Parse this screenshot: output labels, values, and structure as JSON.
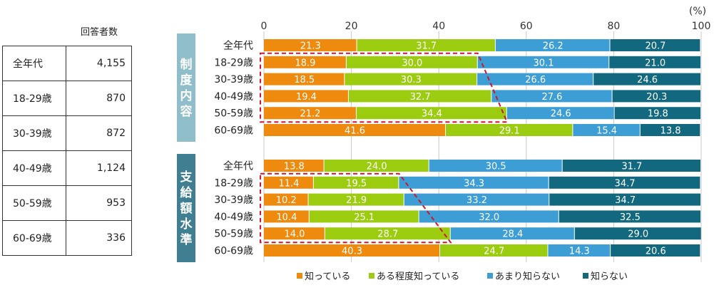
{
  "respondents": {
    "header": "回答者数",
    "rows": [
      {
        "label": "全年代",
        "value": "4,155"
      },
      {
        "label": "18-29歳",
        "value": "870"
      },
      {
        "label": "30-39歳",
        "value": "872"
      },
      {
        "label": "40-49歳",
        "value": "1,124"
      },
      {
        "label": "50-59歳",
        "value": "953"
      },
      {
        "label": "60-69歳",
        "value": "336"
      }
    ]
  },
  "chart_data": {
    "type": "bar",
    "orientation": "horizontal",
    "stacked": true,
    "percent_unit": "(%)",
    "xlim": [
      0,
      100
    ],
    "x_ticks": [
      0,
      20,
      40,
      60,
      80,
      100
    ],
    "legend_position": "bottom",
    "categories": [
      "全年代",
      "18-29歳",
      "30-39歳",
      "40-49歳",
      "50-59歳",
      "60-69歳"
    ],
    "series_names": [
      "知っている",
      "ある程度知っている",
      "あまり知らない",
      "知らない"
    ],
    "colors": [
      "#ee8a0e",
      "#9ccc10",
      "#3d9ed6",
      "#12687e"
    ],
    "group_colors": [
      "#8fbdc9",
      "#3f7f91"
    ],
    "groups": [
      {
        "name": "制度内容",
        "values": [
          [
            21.3,
            31.7,
            26.2,
            20.7
          ],
          [
            18.9,
            30.0,
            30.1,
            21.0
          ],
          [
            18.5,
            30.3,
            26.6,
            24.6
          ],
          [
            19.4,
            32.7,
            27.6,
            20.3
          ],
          [
            21.2,
            34.4,
            24.6,
            19.8
          ],
          [
            41.6,
            29.1,
            15.4,
            13.8
          ]
        ]
      },
      {
        "name": "支給額水準",
        "values": [
          [
            13.8,
            24.0,
            30.5,
            31.7
          ],
          [
            11.4,
            19.5,
            34.3,
            34.7
          ],
          [
            10.2,
            21.9,
            33.2,
            34.7
          ],
          [
            10.4,
            25.1,
            32.0,
            32.5
          ],
          [
            14.0,
            28.7,
            28.4,
            29.0
          ],
          [
            40.3,
            24.7,
            14.3,
            20.6
          ]
        ]
      }
    ]
  }
}
